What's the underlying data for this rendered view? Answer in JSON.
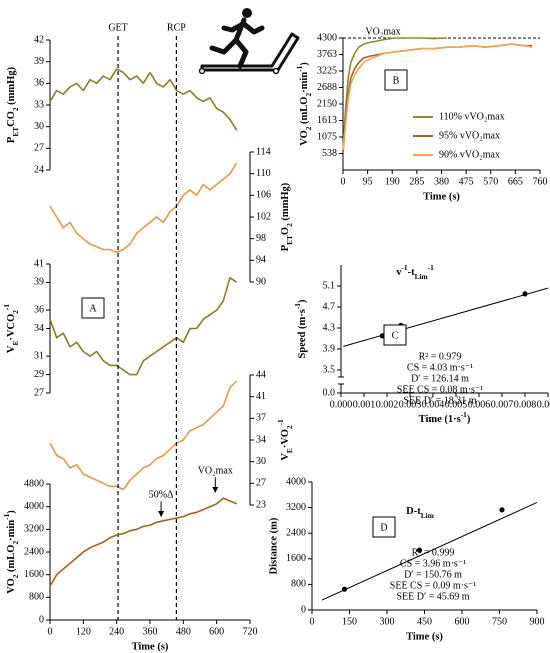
{
  "chart_data": [
    {
      "type": "line",
      "ylabel": [
        {
          "t": "P"
        },
        {
          "t": "ET",
          "sub": true
        },
        {
          "t": "CO"
        },
        {
          "t": "2",
          "sub": true
        },
        {
          "t": " (mmHg)"
        }
      ],
      "yaxis_side": "left",
      "xlim": [
        0,
        720
      ],
      "ylim": [
        24,
        42
      ],
      "yticks": [
        24,
        27,
        30,
        33,
        36,
        39,
        42
      ],
      "x": [
        0,
        24,
        48,
        72,
        96,
        120,
        144,
        168,
        192,
        216,
        240,
        264,
        288,
        312,
        336,
        360,
        384,
        408,
        432,
        456,
        480,
        504,
        528,
        552,
        576,
        600,
        624,
        648,
        672
      ],
      "series": [
        {
          "color": "#8c7b2a",
          "values": [
            33.5,
            35,
            34.5,
            35.5,
            36,
            35,
            36.5,
            36,
            37,
            36.5,
            38,
            37.5,
            36.5,
            37,
            36,
            37.5,
            36,
            35.5,
            36.5,
            35,
            34.5,
            35,
            34,
            33.5,
            34,
            32.5,
            32,
            31,
            29.5
          ]
        }
      ]
    },
    {
      "type": "line",
      "ylabel": [
        {
          "t": "P"
        },
        {
          "t": "ET",
          "sub": true
        },
        {
          "t": "O"
        },
        {
          "t": "2",
          "sub": true
        },
        {
          "t": " (mmHg)"
        }
      ],
      "yaxis_side": "right",
      "xlim": [
        0,
        720
      ],
      "ylim": [
        90,
        114
      ],
      "yticks": [
        90,
        94,
        98,
        102,
        106,
        110,
        114
      ],
      "x": [
        0,
        24,
        48,
        72,
        96,
        120,
        144,
        168,
        192,
        216,
        240,
        264,
        288,
        312,
        336,
        360,
        384,
        408,
        432,
        456,
        480,
        504,
        528,
        552,
        576,
        600,
        624,
        648,
        672
      ],
      "series": [
        {
          "color": "#e3994f",
          "values": [
            104,
            102,
            100,
            101,
            99,
            98,
            97,
            96.5,
            96,
            96,
            95.5,
            96,
            97,
            99,
            100,
            101,
            102,
            101,
            103,
            104,
            106,
            107,
            106,
            108,
            107,
            108,
            109,
            110,
            112
          ]
        }
      ]
    },
    {
      "type": "line",
      "ylabel": [
        {
          "t": "V"
        },
        {
          "t": "E",
          "sub": true
        },
        {
          "t": "·VCO"
        },
        {
          "t": "2",
          "sub": true
        },
        {
          "t": "-1",
          "sup": true
        }
      ],
      "yaxis_side": "left",
      "xlim": [
        0,
        720
      ],
      "ylim": [
        27,
        41
      ],
      "yticks": [
        27,
        29,
        31,
        34,
        36,
        39,
        41
      ],
      "x": [
        0,
        24,
        48,
        72,
        96,
        120,
        144,
        168,
        192,
        216,
        240,
        264,
        288,
        312,
        336,
        360,
        384,
        408,
        432,
        456,
        480,
        504,
        528,
        552,
        576,
        600,
        624,
        648,
        672
      ],
      "series": [
        {
          "color": "#8c7b2a",
          "values": [
            35,
            33,
            33.5,
            32,
            32.5,
            31.5,
            31,
            31.5,
            30.5,
            30,
            30,
            29.5,
            29,
            29,
            30.5,
            31,
            31.5,
            32,
            32.5,
            33,
            32.5,
            34,
            34,
            35,
            35.5,
            36,
            37,
            39.5,
            39
          ]
        }
      ]
    },
    {
      "type": "line",
      "ylabel": [
        {
          "t": "V"
        },
        {
          "t": "E",
          "sub": true
        },
        {
          "t": "·VO"
        },
        {
          "t": "2",
          "sub": true
        },
        {
          "t": "-1",
          "sup": true
        }
      ],
      "yaxis_side": "right",
      "xlim": [
        0,
        720
      ],
      "ylim": [
        23,
        44
      ],
      "yticks": [
        23,
        {
          "value": 26.5,
          "label": "27"
        },
        30,
        {
          "value": 33.5,
          "label": "34"
        },
        37,
        {
          "value": 40.5,
          "label": "41"
        },
        44
      ],
      "x": [
        0,
        24,
        48,
        72,
        96,
        120,
        144,
        168,
        192,
        216,
        240,
        264,
        288,
        312,
        336,
        360,
        384,
        408,
        432,
        456,
        480,
        504,
        528,
        552,
        576,
        600,
        624,
        648,
        672
      ],
      "series": [
        {
          "color": "#e3994f",
          "values": [
            33,
            31,
            30.5,
            29,
            29.5,
            28,
            27.5,
            27,
            26.5,
            26,
            26,
            25.5,
            27,
            28,
            29,
            29.5,
            30.5,
            31,
            32,
            33,
            33.5,
            35,
            35.5,
            36,
            37,
            38,
            39,
            42,
            43
          ]
        }
      ]
    },
    {
      "type": "line",
      "panel_label": "A",
      "ylabel": [
        {
          "t": "VO"
        },
        {
          "t": "2",
          "sub": true
        },
        {
          "t": " (mLO"
        },
        {
          "t": "2",
          "sub": true
        },
        {
          "t": "·min"
        },
        {
          "t": "-1",
          "sup": true
        },
        {
          "t": ")"
        }
      ],
      "xlabel": "Time (s)",
      "yaxis_side": "left",
      "xlim": [
        0,
        720
      ],
      "xticks": [
        0,
        120,
        240,
        360,
        480,
        600,
        720
      ],
      "ylim": [
        0,
        4800
      ],
      "yticks": [
        0,
        800,
        1600,
        2400,
        3200,
        4000,
        4800
      ],
      "x": [
        0,
        24,
        48,
        72,
        96,
        120,
        144,
        168,
        192,
        216,
        240,
        264,
        288,
        312,
        336,
        360,
        384,
        408,
        432,
        456,
        480,
        504,
        528,
        552,
        576,
        600,
        624,
        648,
        672
      ],
      "series": [
        {
          "color": "#a5621f",
          "values": [
            1200,
            1600,
            1800,
            2000,
            2200,
            2400,
            2550,
            2650,
            2750,
            2900,
            3000,
            3050,
            3150,
            3200,
            3300,
            3350,
            3450,
            3500,
            3550,
            3600,
            3650,
            3750,
            3800,
            3900,
            4000,
            4100,
            4300,
            4200,
            4100
          ]
        }
      ],
      "markers": [
        {
          "label": "GET",
          "x": 245
        },
        {
          "label": "RCP",
          "x": 455
        }
      ],
      "annotations": [
        {
          "text": "50%Δ",
          "x": 400,
          "y": 3550
        },
        {
          "text": "VO₂max",
          "x": 595,
          "y": 4400
        }
      ]
    },
    {
      "type": "line",
      "panel_label": "B",
      "ylabel": [
        {
          "t": "VO"
        },
        {
          "t": "2",
          "sub": true
        },
        {
          "t": " (mLO"
        },
        {
          "t": "2",
          "sub": true
        },
        {
          "t": "·min"
        },
        {
          "t": "-1",
          "sup": true
        },
        {
          "t": ")"
        }
      ],
      "xlabel": "Time (s)",
      "yaxis_side": "left",
      "xlim": [
        0,
        760
      ],
      "xticks": [
        0,
        95,
        190,
        285,
        380,
        475,
        570,
        665,
        760
      ],
      "ylim": [
        0,
        4300
      ],
      "yticks": [
        538,
        1075,
        1613,
        2150,
        2688,
        3225,
        3763,
        4300
      ],
      "hline": {
        "label": "VO₂max",
        "value": 4300
      },
      "legend": "lower right",
      "x": [
        0,
        10,
        20,
        30,
        45,
        60,
        80,
        100,
        130,
        160,
        200,
        250,
        300,
        350,
        400,
        450,
        500,
        550,
        600,
        650,
        700,
        730
      ],
      "series": [
        {
          "name": "110% vVO₂max",
          "color": "#8f8a2e",
          "values": [
            600,
            2000,
            3000,
            3500,
            3800,
            4000,
            4100,
            4150,
            4200,
            4250,
            4300,
            4300,
            4300,
            4280,
            4300,
            null,
            null,
            null,
            null,
            null,
            null,
            null
          ]
        },
        {
          "name": "95% vVO₂max",
          "color": "#a9611d",
          "values": [
            550,
            1600,
            2500,
            3000,
            3300,
            3500,
            3650,
            3700,
            3750,
            3800,
            3850,
            3900,
            3950,
            3950,
            4000,
            4000,
            4050,
            4000,
            4050,
            4100,
            4050,
            4050
          ]
        },
        {
          "name": "90% vVO₂max",
          "color": "#f0a75a",
          "values": [
            650,
            1500,
            2300,
            2800,
            3100,
            3300,
            3500,
            3600,
            3700,
            3800,
            3850,
            3900,
            3950,
            3950,
            4000,
            4000,
            4050,
            4000,
            4050,
            4100,
            4050,
            4000
          ]
        }
      ]
    },
    {
      "type": "scatter",
      "panel_label": "C",
      "title": [
        {
          "t": "v"
        },
        {
          "t": "-1",
          "sup": true
        },
        {
          "t": "-t"
        },
        {
          "t": "Lim",
          "sub": true
        },
        {
          "t": "-1",
          "sup": true
        }
      ],
      "xlabel": [
        {
          "t": "Time (1·s"
        },
        {
          "t": "-1",
          "sup": true
        },
        {
          "t": ")"
        }
      ],
      "ylabel": [
        {
          "t": "Speed (m·s"
        },
        {
          "t": "-1",
          "sup": true
        },
        {
          "t": ")"
        }
      ],
      "yaxis_side": "left",
      "xlim": [
        0,
        0.009
      ],
      "xticks": [
        {
          "value": 0,
          "label": "0.000"
        },
        {
          "value": 0.001,
          "label": "0.001"
        },
        {
          "value": 0.002,
          "label": "0.002"
        },
        {
          "value": 0.003,
          "label": "0.003"
        },
        {
          "value": 0.004,
          "label": "0.004"
        },
        {
          "value": 0.005,
          "label": "0.005"
        },
        {
          "value": 0.006,
          "label": "0.006"
        },
        {
          "value": 0.007,
          "label": "0.007"
        },
        {
          "value": 0.008,
          "label": "0.008"
        },
        {
          "value": 0.009,
          "label": "0.009"
        }
      ],
      "ylim": [
        0,
        5.5
      ],
      "ybreak": [
        0,
        3.5
      ],
      "yticks": [
        {
          "value": 0,
          "label": "0.0"
        },
        3.5,
        3.9,
        4.3,
        4.7,
        5.1
      ],
      "x": [
        0.0018,
        0.0026,
        0.008
      ],
      "values": [
        4.15,
        4.35,
        4.95
      ],
      "fit": {
        "x": [
          0.0001,
          0.009
        ],
        "y": [
          3.95,
          5.06
        ]
      },
      "stats": [
        "R² = 0.979",
        "CS = 4.03 m·s⁻¹",
        "D′ = 126.14 m",
        "SEE CS = 0.08 m·s⁻¹",
        "SEE D′ = 18.31 m"
      ]
    },
    {
      "type": "scatter",
      "panel_label": "D",
      "title": [
        {
          "t": "D-t"
        },
        {
          "t": "Lim",
          "sub": true
        }
      ],
      "xlabel": "Time (s)",
      "ylabel": "Distance (m)",
      "yaxis_side": "left",
      "xlim": [
        0,
        900
      ],
      "xticks": [
        0,
        150,
        300,
        450,
        600,
        750,
        900
      ],
      "ylim": [
        0,
        4000
      ],
      "yticks": [
        0,
        800,
        1600,
        2400,
        3200,
        4000
      ],
      "x": [
        130,
        430,
        760
      ],
      "values": [
        650,
        1870,
        3130
      ],
      "fit": {
        "x": [
          40,
          900
        ],
        "y": [
          310,
          3360
        ]
      },
      "stats": [
        "R² = 0.999",
        "CS = 3.96 m·s⁻¹",
        "D′ = 150.76 m",
        "SEE CS = 0.09 m·s⁻¹",
        "SEE D′ = 45.69 m"
      ]
    }
  ]
}
